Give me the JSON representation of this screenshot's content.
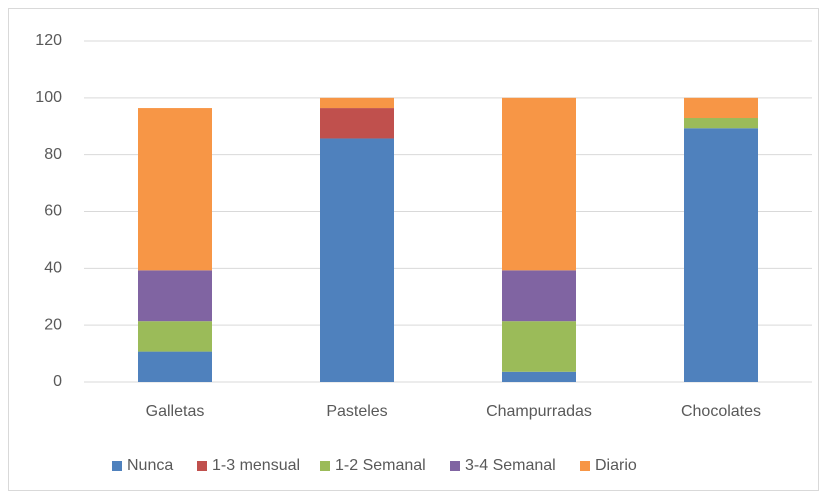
{
  "chart_data": {
    "type": "stacked_bar",
    "categories": [
      "Galletas",
      "Pasteles",
      "Champurradas",
      "Chocolates"
    ],
    "series": [
      {
        "name": "Nunca",
        "color": "#4f81bd",
        "values": [
          10.7,
          85.7,
          3.6,
          89.3
        ]
      },
      {
        "name": "1-3 mensual",
        "color": "#c0504d",
        "values": [
          0,
          10.7,
          0,
          0
        ]
      },
      {
        "name": "1-2 Semanal",
        "color": "#9bbb59",
        "values": [
          10.7,
          0,
          17.8,
          3.6
        ]
      },
      {
        "name": "3-4 Semanal",
        "color": "#8064a2",
        "values": [
          17.9,
          0,
          17.9,
          0
        ]
      },
      {
        "name": "Diario",
        "color": "#f79646",
        "values": [
          57.1,
          3.6,
          60.7,
          7.1
        ]
      }
    ],
    "ylim": [
      0,
      120
    ],
    "yticks": [
      0,
      20,
      40,
      60,
      80,
      100,
      120
    ],
    "grid": true,
    "legend": "bottom"
  }
}
